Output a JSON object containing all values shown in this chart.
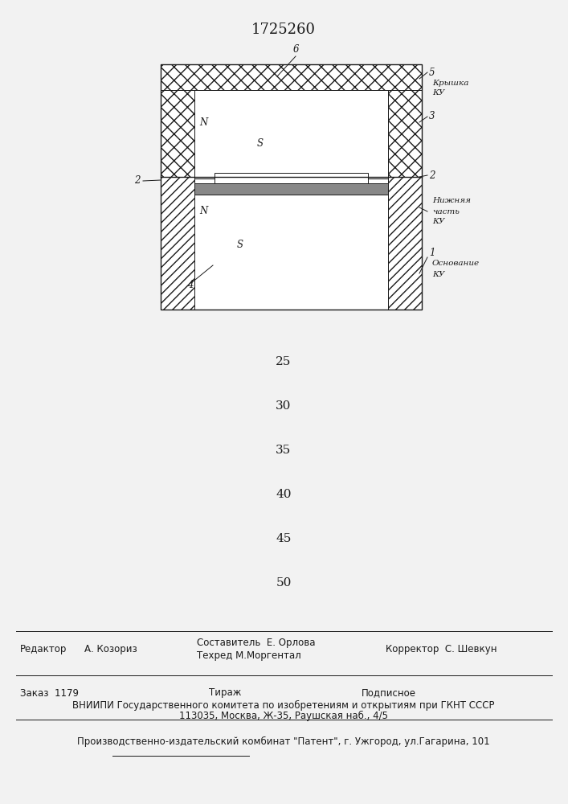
{
  "title": "1725260",
  "bg_color": "#f2f2f2",
  "line_color": "#1a1a1a",
  "numbers": [
    "25",
    "30",
    "35",
    "40",
    "45",
    "50"
  ],
  "footer_texts": {
    "editor_label": "Редактор",
    "editor_name": "А. Козориз",
    "compiler_label": "Составитель",
    "compiler_name": "Е. Орлова",
    "techred_label": "Техред",
    "techred_name": "М.Моргентал",
    "corrector_label": "Корректор",
    "corrector_name": "С. Шевкун",
    "order_label": "Заказ",
    "order_num": "1179",
    "tirazh_label": "Тираж",
    "podpisnoe_label": "Подписное",
    "vniipri_line1": "ВНИИПИ Государственного комитета по изобретениям и открытиям при ГКНТ СССР",
    "vniipri_line2": "113035, Москва, Ж-35, Раушская наб., 4/5",
    "factory_line": "Производственно-издательский комбинат \"Патент\", г. Ужгород, ул.Гагарина, 101"
  }
}
